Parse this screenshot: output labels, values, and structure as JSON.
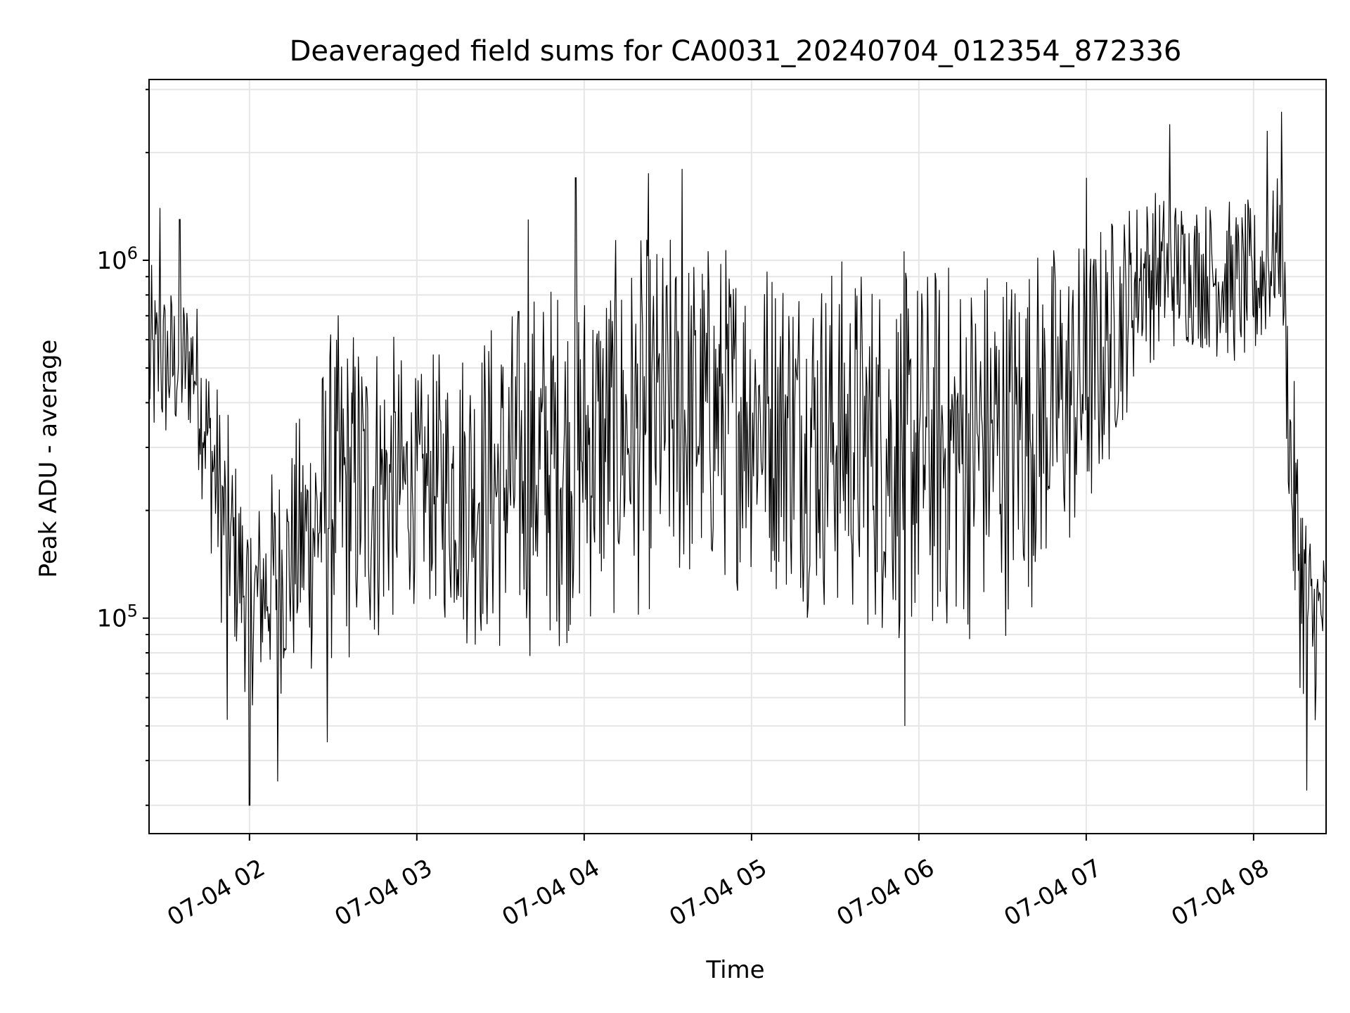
{
  "chart_data": {
    "type": "line",
    "title": "Deaveraged field sums for CA0031_20240704_012354_872336",
    "xlabel": "Time",
    "ylabel": "Peak ADU - average",
    "y_scale": "log",
    "ylim": [
      25000,
      3200000
    ],
    "xlim": [
      "2024-07-04 01:24",
      "2024-07-04 08:26"
    ],
    "grid": true,
    "line_color": "#000000",
    "grid_color": "#e6e6e6",
    "x_ticks": [
      {
        "value": "2024-07-04 02:00",
        "label": "07-04 02"
      },
      {
        "value": "2024-07-04 03:00",
        "label": "07-04 03"
      },
      {
        "value": "2024-07-04 04:00",
        "label": "07-04 04"
      },
      {
        "value": "2024-07-04 05:00",
        "label": "07-04 05"
      },
      {
        "value": "2024-07-04 06:00",
        "label": "07-04 06"
      },
      {
        "value": "2024-07-04 07:00",
        "label": "07-04 07"
      },
      {
        "value": "2024-07-04 08:00",
        "label": "07-04 08"
      }
    ],
    "y_ticks": [
      {
        "value": 100000,
        "base": "10",
        "exp": "5"
      },
      {
        "value": 1000000,
        "base": "10",
        "exp": "6"
      }
    ],
    "series": [
      {
        "envelope": [
          {
            "t": "2024-07-04 01:24",
            "upper": 1000000,
            "lower": 250000
          },
          {
            "t": "2024-07-04 01:40",
            "upper": 900000,
            "lower": 300000
          },
          {
            "t": "2024-07-04 01:50",
            "upper": 450000,
            "lower": 90000
          },
          {
            "t": "2024-07-04 02:00",
            "upper": 220000,
            "lower": 55000
          },
          {
            "t": "2024-07-04 02:15",
            "upper": 350000,
            "lower": 60000
          },
          {
            "t": "2024-07-04 02:30",
            "upper": 750000,
            "lower": 65000
          },
          {
            "t": "2024-07-04 02:45",
            "upper": 800000,
            "lower": 70000
          },
          {
            "t": "2024-07-04 03:00",
            "upper": 500000,
            "lower": 110000
          },
          {
            "t": "2024-07-04 03:15",
            "upper": 700000,
            "lower": 80000
          },
          {
            "t": "2024-07-04 03:30",
            "upper": 800000,
            "lower": 70000
          },
          {
            "t": "2024-07-04 03:45",
            "upper": 1000000,
            "lower": 75000
          },
          {
            "t": "2024-07-04 04:00",
            "upper": 1100000,
            "lower": 85000
          },
          {
            "t": "2024-07-04 04:30",
            "upper": 1300000,
            "lower": 100000
          },
          {
            "t": "2024-07-04 05:00",
            "upper": 1250000,
            "lower": 120000
          },
          {
            "t": "2024-07-04 05:30",
            "upper": 1150000,
            "lower": 90000
          },
          {
            "t": "2024-07-04 06:00",
            "upper": 1100000,
            "lower": 75000
          },
          {
            "t": "2024-07-04 06:30",
            "upper": 1200000,
            "lower": 85000
          },
          {
            "t": "2024-07-04 07:00",
            "upper": 1300000,
            "lower": 150000
          },
          {
            "t": "2024-07-04 07:20",
            "upper": 1700000,
            "lower": 500000
          },
          {
            "t": "2024-07-04 07:40",
            "upper": 1600000,
            "lower": 550000
          },
          {
            "t": "2024-07-04 08:00",
            "upper": 1500000,
            "lower": 450000
          },
          {
            "t": "2024-07-04 08:10",
            "upper": 1800000,
            "lower": 700000
          },
          {
            "t": "2024-07-04 08:14",
            "upper": 500000,
            "lower": 90000
          },
          {
            "t": "2024-07-04 08:20",
            "upper": 220000,
            "lower": 40000
          },
          {
            "t": "2024-07-04 08:26",
            "upper": 160000,
            "lower": 70000
          }
        ],
        "spikes": [
          {
            "t": "2024-07-04 01:28",
            "value": 1400000
          },
          {
            "t": "2024-07-04 01:35",
            "value": 1300000
          },
          {
            "t": "2024-07-04 01:52",
            "value": 52000
          },
          {
            "t": "2024-07-04 02:00",
            "value": 30000
          },
          {
            "t": "2024-07-04 02:10",
            "value": 35000
          },
          {
            "t": "2024-07-04 02:28",
            "value": 45000
          },
          {
            "t": "2024-07-04 03:40",
            "value": 1300000
          },
          {
            "t": "2024-07-04 03:57",
            "value": 1700000
          },
          {
            "t": "2024-07-04 04:23",
            "value": 1750000
          },
          {
            "t": "2024-07-04 04:35",
            "value": 1800000
          },
          {
            "t": "2024-07-04 05:55",
            "value": 50000
          },
          {
            "t": "2024-07-04 07:00",
            "value": 1700000
          },
          {
            "t": "2024-07-04 07:30",
            "value": 2400000
          },
          {
            "t": "2024-07-04 08:05",
            "value": 2300000
          },
          {
            "t": "2024-07-04 08:10",
            "value": 2600000
          },
          {
            "t": "2024-07-04 08:19",
            "value": 33000
          }
        ]
      }
    ]
  }
}
